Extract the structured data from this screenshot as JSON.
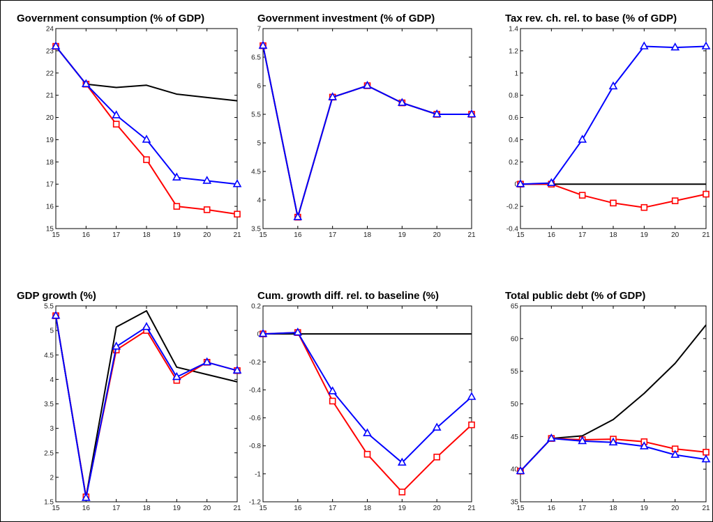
{
  "colors": {
    "black_series": "#000000",
    "red_series": "#ff0000",
    "blue_series": "#0000ff"
  },
  "chart_data": [
    {
      "type": "line",
      "title": "Government consumption (% of GDP)",
      "x": [
        15,
        16,
        17,
        18,
        19,
        20,
        21
      ],
      "ylim": [
        15,
        24
      ],
      "yticks": [
        15,
        16,
        17,
        18,
        19,
        20,
        21,
        22,
        23,
        24
      ],
      "series": [
        {
          "color": "#000000",
          "marker": "none",
          "values": [
            23.2,
            21.5,
            21.35,
            21.45,
            21.05,
            20.9,
            20.75
          ]
        },
        {
          "color": "#ff0000",
          "marker": "square",
          "values": [
            23.2,
            21.5,
            19.7,
            18.1,
            16.0,
            15.85,
            15.65
          ]
        },
        {
          "color": "#0000ff",
          "marker": "triangle",
          "values": [
            23.2,
            21.5,
            20.1,
            19.0,
            17.3,
            17.15,
            17.0
          ]
        }
      ]
    },
    {
      "type": "line",
      "title": "Government investment (% of GDP)",
      "x": [
        15,
        16,
        17,
        18,
        19,
        20,
        21
      ],
      "ylim": [
        3.5,
        7
      ],
      "yticks": [
        3.5,
        4,
        4.5,
        5,
        5.5,
        6,
        6.5,
        7
      ],
      "series": [
        {
          "color": "#000000",
          "marker": "none",
          "values": [
            6.7,
            3.7,
            5.8,
            6.0,
            5.7,
            5.5,
            5.5
          ]
        },
        {
          "color": "#ff0000",
          "marker": "square",
          "values": [
            6.7,
            3.7,
            5.8,
            6.0,
            5.7,
            5.5,
            5.5
          ]
        },
        {
          "color": "#0000ff",
          "marker": "triangle",
          "values": [
            6.7,
            3.7,
            5.8,
            6.0,
            5.7,
            5.5,
            5.5
          ]
        }
      ]
    },
    {
      "type": "line",
      "title": "Tax rev. ch. rel. to base (% of GDP)",
      "x": [
        15,
        16,
        17,
        18,
        19,
        20,
        21
      ],
      "ylim": [
        -0.4,
        1.4
      ],
      "yticks": [
        -0.4,
        -0.2,
        0,
        0.2,
        0.4,
        0.6,
        0.8,
        1,
        1.2,
        1.4
      ],
      "series": [
        {
          "color": "#000000",
          "marker": "none",
          "values": [
            0,
            0,
            0,
            0,
            0,
            0,
            0
          ]
        },
        {
          "color": "#ff0000",
          "marker": "square",
          "values": [
            0,
            0,
            -0.1,
            -0.17,
            -0.21,
            -0.15,
            -0.09
          ]
        },
        {
          "color": "#0000ff",
          "marker": "triangle",
          "values": [
            0,
            0.01,
            0.4,
            0.88,
            1.24,
            1.23,
            1.24
          ]
        }
      ]
    },
    {
      "type": "line",
      "title": "GDP growth (%)",
      "x": [
        15,
        16,
        17,
        18,
        19,
        20,
        21
      ],
      "ylim": [
        1.5,
        5.5
      ],
      "yticks": [
        1.5,
        2,
        2.5,
        3,
        3.5,
        4,
        4.5,
        5,
        5.5
      ],
      "series": [
        {
          "color": "#000000",
          "marker": "none",
          "values": [
            5.3,
            1.6,
            5.07,
            5.4,
            4.25,
            4.1,
            3.95
          ]
        },
        {
          "color": "#ff0000",
          "marker": "square",
          "values": [
            5.3,
            1.6,
            4.6,
            5.0,
            3.98,
            4.35,
            4.18
          ]
        },
        {
          "color": "#0000ff",
          "marker": "triangle",
          "values": [
            5.3,
            1.58,
            4.67,
            5.07,
            4.05,
            4.35,
            4.18
          ]
        }
      ]
    },
    {
      "type": "line",
      "title": "Cum. growth diff. rel. to baseline (%)",
      "x": [
        15,
        16,
        17,
        18,
        19,
        20,
        21
      ],
      "ylim": [
        -1.2,
        0.2
      ],
      "yticks": [
        -1.2,
        -1,
        -0.8,
        -0.6,
        -0.4,
        -0.2,
        0,
        0.2
      ],
      "series": [
        {
          "color": "#000000",
          "marker": "none",
          "values": [
            0,
            0,
            0,
            0,
            0,
            0,
            0
          ]
        },
        {
          "color": "#ff0000",
          "marker": "square",
          "values": [
            0,
            0.01,
            -0.48,
            -0.86,
            -1.13,
            -0.88,
            -0.65
          ]
        },
        {
          "color": "#0000ff",
          "marker": "triangle",
          "values": [
            0,
            0.01,
            -0.41,
            -0.71,
            -0.92,
            -0.67,
            -0.45
          ]
        }
      ]
    },
    {
      "type": "line",
      "title": "Total public debt (% of GDP)",
      "x": [
        15,
        16,
        17,
        18,
        19,
        20,
        21
      ],
      "ylim": [
        35,
        65
      ],
      "yticks": [
        35,
        40,
        45,
        50,
        55,
        60,
        65
      ],
      "series": [
        {
          "color": "#000000",
          "marker": "none",
          "values": [
            39.7,
            44.7,
            45.1,
            47.6,
            51.6,
            56.2,
            62.1
          ]
        },
        {
          "color": "#ff0000",
          "marker": "square",
          "values": [
            39.7,
            44.7,
            44.5,
            44.6,
            44.2,
            43.1,
            42.6
          ]
        },
        {
          "color": "#0000ff",
          "marker": "triangle",
          "values": [
            39.7,
            44.7,
            44.3,
            44.1,
            43.5,
            42.2,
            41.5
          ]
        }
      ]
    }
  ]
}
